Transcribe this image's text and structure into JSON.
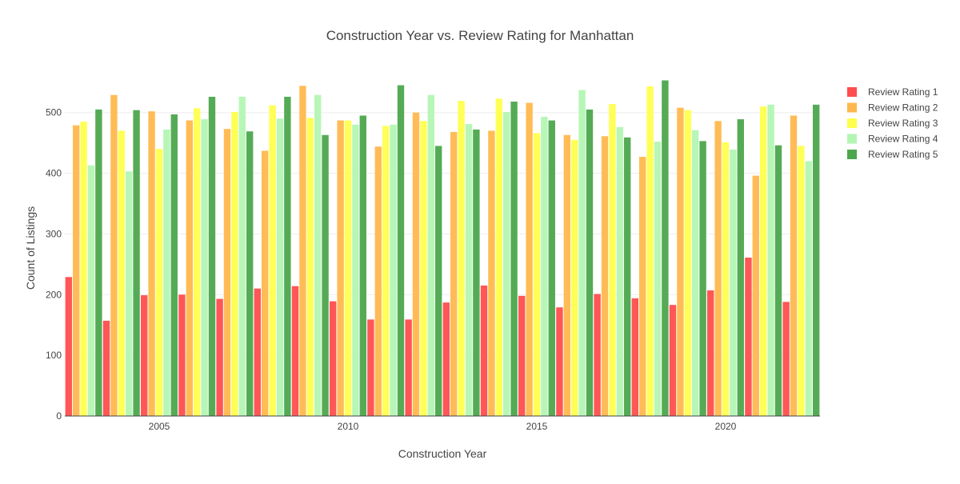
{
  "chart_data": {
    "type": "bar",
    "title": "Construction Year vs. Review Rating for Manhattan",
    "xlabel": "Construction Year",
    "ylabel": "Count of Listings",
    "x": [
      2003,
      2004,
      2005,
      2006,
      2007,
      2008,
      2009,
      2010,
      2011,
      2012,
      2013,
      2014,
      2015,
      2016,
      2017,
      2018,
      2019,
      2020,
      2021,
      2022
    ],
    "x_ticks": [
      2005,
      2010,
      2015,
      2020
    ],
    "y_ticks": [
      0,
      100,
      200,
      300,
      400,
      500
    ],
    "xlim": [
      2002.5,
      2022.5
    ],
    "ylim": [
      0,
      580
    ],
    "grid": "horizontal",
    "legend_position": "top-right",
    "series": [
      {
        "name": "Review Rating 1",
        "color": "#ff4d4d",
        "values": [
          229,
          157,
          199,
          200,
          193,
          210,
          214,
          189,
          159,
          159,
          187,
          215,
          198,
          179,
          201,
          194,
          183,
          207,
          261,
          188
        ]
      },
      {
        "name": "Review Rating 2",
        "color": "#ffb84d",
        "values": [
          479,
          529,
          502,
          487,
          473,
          437,
          544,
          487,
          444,
          500,
          468,
          470,
          516,
          463,
          461,
          427,
          508,
          486,
          396,
          495
        ]
      },
      {
        "name": "Review Rating 3",
        "color": "#ffff4d",
        "values": [
          485,
          470,
          440,
          507,
          501,
          512,
          491,
          487,
          478,
          486,
          519,
          523,
          466,
          455,
          514,
          543,
          504,
          451,
          510,
          445
        ]
      },
      {
        "name": "Review Rating 4",
        "color": "#b3f5b3",
        "values": [
          413,
          403,
          472,
          489,
          526,
          490,
          529,
          480,
          480,
          529,
          481,
          501,
          493,
          537,
          476,
          452,
          471,
          439,
          513,
          420
        ]
      },
      {
        "name": "Review Rating 5",
        "color": "#4ca64c",
        "values": [
          505,
          504,
          497,
          526,
          469,
          526,
          463,
          495,
          545,
          445,
          472,
          518,
          487,
          505,
          459,
          553,
          453,
          489,
          446,
          513
        ]
      }
    ]
  }
}
